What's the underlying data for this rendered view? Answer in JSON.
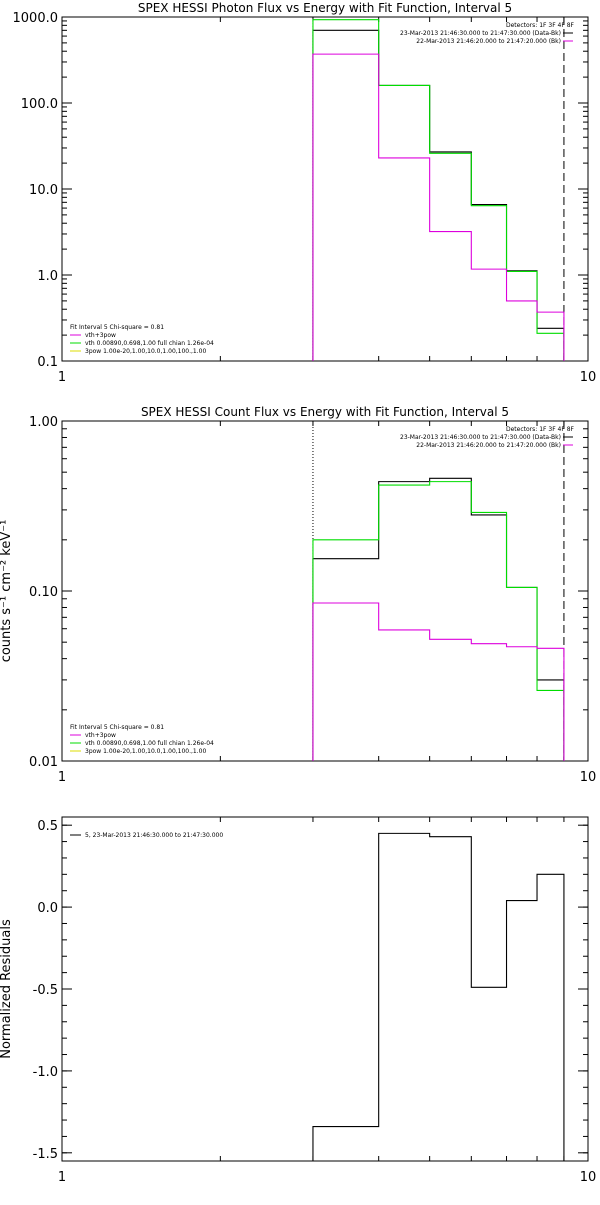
{
  "chart_data": [
    {
      "id": "photon",
      "type": "line",
      "title": "SPEX HESSI Photon Flux vs Energy with Fit Function, Interval 5",
      "ylabel": "",
      "xlabel": "",
      "xscale": "log",
      "yscale": "log",
      "xlim": [
        1,
        10
      ],
      "ylim": [
        0.1,
        1000
      ],
      "yticks": [
        {
          "v": 0.1,
          "label": "0.1"
        },
        {
          "v": 1,
          "label": "1.0"
        },
        {
          "v": 10,
          "label": "10.0"
        },
        {
          "v": 100,
          "label": "100.0"
        },
        {
          "v": 1000,
          "label": "1000.0"
        }
      ],
      "xticks": [
        {
          "v": 1,
          "label": "1"
        },
        {
          "v": 10,
          "label": "10"
        }
      ],
      "vlines": [
        {
          "x": 3.0,
          "style": "dotted",
          "color": "#000000"
        },
        {
          "x": 9.0,
          "style": "dashed",
          "color": "#000000"
        }
      ],
      "bin_edges": [
        3,
        4,
        5,
        6,
        7,
        8,
        9
      ],
      "series": [
        {
          "color": "#000000",
          "values": [
            700,
            160,
            27,
            6.6,
            1.12,
            0.24
          ]
        },
        {
          "color": "#00dd00",
          "values": [
            930,
            160,
            26,
            6.4,
            1.1,
            0.21
          ]
        },
        {
          "color": "#dd00dd",
          "values": [
            370,
            23,
            3.2,
            1.17,
            0.5,
            0.37
          ]
        }
      ],
      "legend_left": {
        "header": "Fit Interval 5   Chi-square = 0.81",
        "items": [
          {
            "label": "vth+3pow",
            "color": "#dd00dd"
          },
          {
            "label": "vth 0.00890,0.698,1.00  full chian 1.26e-04",
            "color": "#00dd00"
          },
          {
            "label": "3pow 1.00e-20,1.00,10.0,1.00,100.,1.00",
            "color": "#dddd00"
          }
        ]
      },
      "legend_right": {
        "header": "Detectors: 1F 3F 4F 8F",
        "items": [
          {
            "label": "23-Mar-2013 21:46:30.000 to 21:47:30.000 (Data-Bk)",
            "color": "#000000"
          },
          {
            "label": "22-Mar-2013 21:46:20.000 to 21:47:20.000 (Bk)",
            "color": "#dd00dd"
          }
        ]
      }
    },
    {
      "id": "count",
      "type": "line",
      "title": "SPEX HESSI Count Flux vs Energy with Fit Function, Interval 5",
      "ylabel": "counts s⁻¹ cm⁻² keV⁻¹",
      "xlabel": "",
      "xscale": "log",
      "yscale": "log",
      "xlim": [
        1,
        10
      ],
      "ylim": [
        0.01,
        1
      ],
      "yticks": [
        {
          "v": 0.01,
          "label": "0.01"
        },
        {
          "v": 0.1,
          "label": "0.10"
        },
        {
          "v": 1,
          "label": "1.00"
        }
      ],
      "xticks": [
        {
          "v": 1,
          "label": "1"
        },
        {
          "v": 10,
          "label": "10"
        }
      ],
      "vlines": [
        {
          "x": 3.0,
          "style": "dotted",
          "color": "#000000"
        },
        {
          "x": 9.0,
          "style": "dashed",
          "color": "#000000"
        }
      ],
      "bin_edges": [
        3,
        4,
        5,
        6,
        7,
        8,
        9
      ],
      "series": [
        {
          "color": "#000000",
          "values": [
            0.155,
            0.44,
            0.46,
            0.28,
            0.105,
            0.03
          ]
        },
        {
          "color": "#00dd00",
          "values": [
            0.2,
            0.42,
            0.44,
            0.29,
            0.105,
            0.026
          ]
        },
        {
          "color": "#dd00dd",
          "values": [
            0.085,
            0.059,
            0.052,
            0.049,
            0.047,
            0.046
          ]
        }
      ],
      "legend_left": {
        "header": "Fit Interval 5   Chi-square = 0.81",
        "items": [
          {
            "label": "vth+3pow",
            "color": "#dd00dd"
          },
          {
            "label": "vth 0.00890,0.698,1.00  full chian 1.26e-04",
            "color": "#00dd00"
          },
          {
            "label": "3pow 1.00e-20,1.00,10.0,1.00,100.,1.00",
            "color": "#dddd00"
          }
        ]
      },
      "legend_right": {
        "header": "Detectors: 1F 3F 4F 8F",
        "items": [
          {
            "label": "23-Mar-2013 21:46:30.000 to 21:47:30.000 (Data-Bk)",
            "color": "#000000"
          },
          {
            "label": "22-Mar-2013 21:46:20.000 to 21:47:20.000 (Bk)",
            "color": "#dd00dd"
          }
        ]
      }
    },
    {
      "id": "residuals",
      "type": "line",
      "title": "",
      "ylabel": "Normalized Residuals",
      "xlabel": "",
      "xscale": "log",
      "yscale": "linear",
      "xlim": [
        1,
        10
      ],
      "ylim": [
        -1.55,
        0.55
      ],
      "yticks": [
        {
          "v": -1.5,
          "label": "-1.5"
        },
        {
          "v": -1.0,
          "label": "-1.0"
        },
        {
          "v": -0.5,
          "label": "-0.5"
        },
        {
          "v": 0.0,
          "label": "0.0"
        },
        {
          "v": 0.5,
          "label": "0.5"
        }
      ],
      "xticks": [
        {
          "v": 1,
          "label": "1"
        },
        {
          "v": 10,
          "label": "10"
        }
      ],
      "vlines": [],
      "bin_edges": [
        3,
        4,
        5,
        6,
        7,
        8,
        9
      ],
      "series": [
        {
          "color": "#000000",
          "values": [
            -1.34,
            0.45,
            0.43,
            -0.49,
            0.04,
            0.2
          ],
          "drop_to_bottom": true
        }
      ],
      "legend_left": {
        "header": "",
        "items": [
          {
            "label": "5, 23-Mar-2013 21:46:30.000 to 21:47:30.000",
            "color": "#000000"
          }
        ]
      },
      "legend_right": null
    }
  ]
}
